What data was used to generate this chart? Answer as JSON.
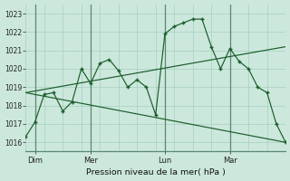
{
  "bg_color": "#cce8dc",
  "grid_color": "#9dc8b8",
  "line_color": "#1a5c2a",
  "ylabel_text": "Pression niveau de la mer( hPa )",
  "ylim": [
    1015.5,
    1023.5
  ],
  "yticks": [
    1016,
    1017,
    1018,
    1019,
    1020,
    1021,
    1022,
    1023
  ],
  "xlim": [
    0,
    14
  ],
  "day_labels": [
    "Dim",
    "Mer",
    "Lun",
    "Mar"
  ],
  "day_positions": [
    0.5,
    3.5,
    7.5,
    11.0
  ],
  "vline_positions": [
    0.5,
    3.5,
    7.5,
    11.0
  ],
  "minor_vlines": 14,
  "series_main": {
    "x": [
      0,
      0.5,
      1.0,
      1.5,
      2.0,
      2.5,
      3.0,
      3.5,
      4.0,
      4.5,
      5.0,
      5.5,
      6.0,
      6.5,
      7.0,
      7.5,
      8.0,
      8.5,
      9.0,
      9.5,
      10.0,
      10.5,
      11.0,
      11.5,
      12.0,
      12.5,
      13.0,
      13.5,
      14.0
    ],
    "y": [
      1016.3,
      1017.1,
      1018.6,
      1018.7,
      1017.7,
      1018.2,
      1020.0,
      1019.2,
      1020.3,
      1020.5,
      1019.9,
      1019.0,
      1019.4,
      1019.0,
      1017.5,
      1021.9,
      1022.3,
      1022.5,
      1022.7,
      1022.7,
      1021.2,
      1020.0,
      1021.1,
      1020.4,
      1020.0,
      1019.0,
      1018.7,
      1017.0,
      1016.0
    ]
  },
  "trend_up": {
    "x": [
      0,
      14
    ],
    "y": [
      1018.7,
      1021.2
    ]
  },
  "trend_down": {
    "x": [
      0,
      14
    ],
    "y": [
      1018.7,
      1016.0
    ]
  }
}
